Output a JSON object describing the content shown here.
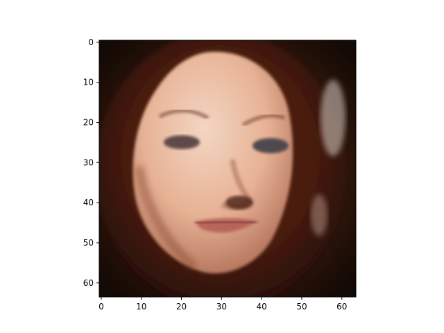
{
  "chart_data": {
    "type": "heatmap",
    "title": "",
    "xlabel": "",
    "ylabel": "",
    "image_size": [
      64,
      64
    ],
    "xlim": [
      -0.5,
      63.5
    ],
    "ylim": [
      63.5,
      -0.5
    ],
    "x_ticks": [
      0,
      10,
      20,
      30,
      40,
      50,
      60
    ],
    "y_ticks": [
      0,
      10,
      20,
      30,
      40,
      50,
      60
    ],
    "x_tick_labels": [
      "0",
      "10",
      "20",
      "30",
      "40",
      "50",
      "60"
    ],
    "y_tick_labels": [
      "0",
      "10",
      "20",
      "30",
      "40",
      "50",
      "60"
    ],
    "grid": false,
    "content": "blurry face reconstruction image",
    "colors": {
      "background": "#1a0e07",
      "hair": "#3a1508",
      "skin": "#e8b49a",
      "skin_light": "#f2d3c0",
      "shadow": "#b47a62",
      "eye": "#5a4a4a",
      "lips": "#b0645a",
      "spine": "#000000"
    }
  }
}
